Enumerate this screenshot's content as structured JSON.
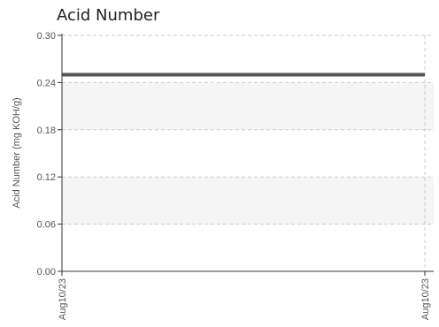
{
  "chart_data": {
    "type": "line",
    "title": "Acid Number",
    "ylabel": "Acid Number (mg KOH/g)",
    "xlabel": "",
    "ylim": [
      0,
      0.3
    ],
    "y_ticks": [
      "0.00",
      "0.06",
      "0.12",
      "0.18",
      "0.24",
      "0.30"
    ],
    "y_tick_values": [
      0,
      0.06,
      0.12,
      0.18,
      0.24,
      0.3
    ],
    "x_ticks": [
      "Aug10/23",
      "Aug10/23"
    ],
    "shaded_bands": [
      {
        "from": 0.06,
        "to": 0.12
      },
      {
        "from": 0.18,
        "to": 0.24
      }
    ],
    "grid": true,
    "series": [
      {
        "x": [
          "Aug10/23",
          "Aug10/23"
        ],
        "values": [
          0.25,
          0.25
        ],
        "color": "#555555"
      }
    ]
  }
}
